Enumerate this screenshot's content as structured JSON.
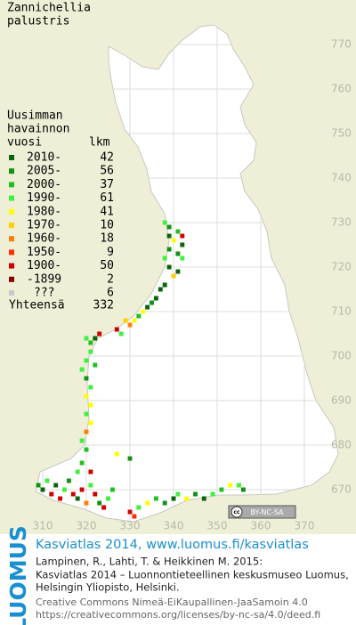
{
  "title": [
    "Zannichellia",
    "palustris"
  ],
  "legend": {
    "heading": [
      "Uusimman",
      "havainnon",
      "vuosi"
    ],
    "count_heading": "lkm",
    "classes": [
      {
        "label": "2010-",
        "count": 42,
        "color": "#0a640a"
      },
      {
        "label": "2005-",
        "count": 56,
        "color": "#129212"
      },
      {
        "label": "2000-",
        "count": 37,
        "color": "#20c020"
      },
      {
        "label": "1990-",
        "count": 61,
        "color": "#40f040"
      },
      {
        "label": "1980-",
        "count": 41,
        "color": "#ffff00"
      },
      {
        "label": "1970-",
        "count": 10,
        "color": "#ffd000"
      },
      {
        "label": "1960-",
        "count": 18,
        "color": "#ff8000"
      },
      {
        "label": "1950-",
        "count": 9,
        "color": "#ff3000"
      },
      {
        "label": "1900-",
        "count": 50,
        "color": "#d00000"
      },
      {
        "label": "-1899",
        "count": 2,
        "color": "#8a0000"
      },
      {
        "label": "???",
        "count": 6,
        "color": "#c8c8c8"
      }
    ],
    "total_label": "Yhteensä",
    "total": 332
  },
  "xticks": [
    310,
    320,
    330,
    340,
    350,
    360,
    370
  ],
  "yticks": [
    670,
    680,
    690,
    700,
    710,
    720,
    730,
    740,
    750,
    760,
    770
  ],
  "points": [
    [
      338,
      730,
      3
    ],
    [
      339,
      729,
      1
    ],
    [
      339,
      727,
      0
    ],
    [
      340,
      726,
      4
    ],
    [
      339,
      724,
      1
    ],
    [
      338,
      722,
      3
    ],
    [
      339,
      720,
      0
    ],
    [
      341,
      728,
      2
    ],
    [
      342,
      725,
      0
    ],
    [
      342,
      722,
      3
    ],
    [
      341,
      719,
      0
    ],
    [
      340,
      718,
      5
    ],
    [
      342,
      727,
      8
    ],
    [
      341,
      723,
      1
    ],
    [
      338,
      716,
      0
    ],
    [
      337,
      715,
      0
    ],
    [
      336,
      713,
      0
    ],
    [
      335,
      712,
      1
    ],
    [
      334,
      711,
      0
    ],
    [
      333,
      710,
      4
    ],
    [
      332,
      709,
      2
    ],
    [
      331,
      708,
      4
    ],
    [
      330,
      707,
      6
    ],
    [
      329,
      708,
      5
    ],
    [
      327,
      706,
      8
    ],
    [
      328,
      705,
      3
    ],
    [
      320,
      704,
      3
    ],
    [
      321,
      703,
      2
    ],
    [
      322,
      704,
      0
    ],
    [
      323,
      705,
      8
    ],
    [
      321,
      701,
      3
    ],
    [
      320,
      699,
      3
    ],
    [
      322,
      698,
      2
    ],
    [
      319,
      697,
      3
    ],
    [
      320,
      695,
      1
    ],
    [
      321,
      693,
      3
    ],
    [
      320,
      691,
      4
    ],
    [
      321,
      689,
      4
    ],
    [
      320,
      687,
      3
    ],
    [
      321,
      685,
      4
    ],
    [
      320,
      683,
      6
    ],
    [
      319,
      681,
      3
    ],
    [
      320,
      679,
      2
    ],
    [
      327,
      678,
      4
    ],
    [
      330,
      677,
      1
    ],
    [
      309,
      671,
      1
    ],
    [
      310,
      670,
      0
    ],
    [
      311,
      672,
      3
    ],
    [
      312,
      669,
      8
    ],
    [
      313,
      671,
      0
    ],
    [
      314,
      668,
      8
    ],
    [
      315,
      670,
      3
    ],
    [
      316,
      672,
      1
    ],
    [
      317,
      669,
      8
    ],
    [
      318,
      668,
      0
    ],
    [
      319,
      670,
      8
    ],
    [
      320,
      667,
      6
    ],
    [
      321,
      671,
      3
    ],
    [
      322,
      669,
      8
    ],
    [
      323,
      667,
      1
    ],
    [
      324,
      666,
      8
    ],
    [
      325,
      668,
      3
    ],
    [
      326,
      670,
      2
    ],
    [
      318,
      674,
      3
    ],
    [
      319,
      676,
      2
    ],
    [
      321,
      674,
      8
    ],
    [
      330,
      665,
      8
    ],
    [
      331,
      664,
      7
    ],
    [
      332,
      666,
      3
    ],
    [
      334,
      667,
      4
    ],
    [
      336,
      668,
      2
    ],
    [
      338,
      667,
      1
    ],
    [
      340,
      668,
      0
    ],
    [
      341,
      669,
      3
    ],
    [
      343,
      668,
      4
    ],
    [
      345,
      669,
      1
    ],
    [
      347,
      668,
      0
    ],
    [
      349,
      669,
      3
    ],
    [
      351,
      670,
      2
    ],
    [
      353,
      671,
      4
    ],
    [
      355,
      671,
      3
    ],
    [
      356,
      670,
      1
    ]
  ],
  "badge": [
    "cc",
    "BY-NC-SA"
  ],
  "footer": {
    "logo": "LUOMUS",
    "heading": "Kasviatlas 2014, www.luomus.fi/kasviatlas",
    "citation": [
      "Lampinen, R., Lahti, T. & Heikkinen M. 2015:",
      "Kasviatlas 2014 – Luonnontieteellinen keskusmuseo Luomus,",
      "Helsingin Yliopisto, Helsinki."
    ],
    "license": [
      "Creative Commons Nimeä-EiKaupallinen-JaaSamoin 4.0",
      "https://creativecommons.org/licenses/by-nc-sa/4.0/deed.fi"
    ]
  }
}
